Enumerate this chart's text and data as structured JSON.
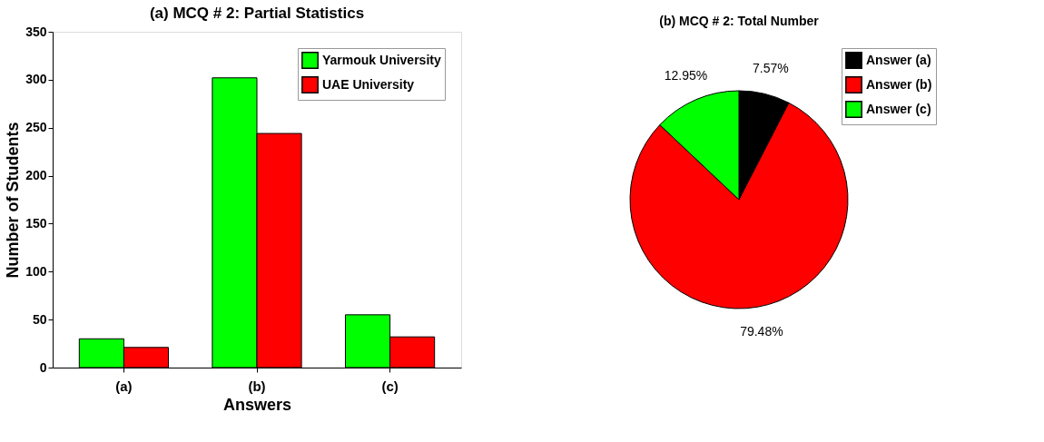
{
  "chart_data": [
    {
      "type": "bar",
      "title": "(a) MCQ # 2: Partial Statistics",
      "xlabel": "Answers",
      "ylabel": "Number of Students",
      "categories": [
        "(a)",
        "(b)",
        "(c)"
      ],
      "series": [
        {
          "name": "Yarmouk University",
          "color": "#00ff00",
          "values": [
            30,
            302,
            55
          ]
        },
        {
          "name": "UAE University",
          "color": "#ff0000",
          "values": [
            21,
            244,
            32
          ]
        }
      ],
      "ylim": [
        0,
        350
      ],
      "yticks": [
        0,
        50,
        100,
        150,
        200,
        250,
        300,
        350
      ],
      "grid": false,
      "legend": "top right"
    },
    {
      "type": "pie",
      "title": "(b) MCQ # 2: Total Number",
      "categories": [
        "Answer (a)",
        "Answer (b)",
        "Answer (c)"
      ],
      "values": [
        7.57,
        79.48,
        12.95
      ],
      "colors": [
        "#000000",
        "#ff0000",
        "#00ff00"
      ],
      "value_labels": [
        "7.57%",
        "79.48%",
        "12.95%"
      ],
      "legend": "top right"
    }
  ]
}
